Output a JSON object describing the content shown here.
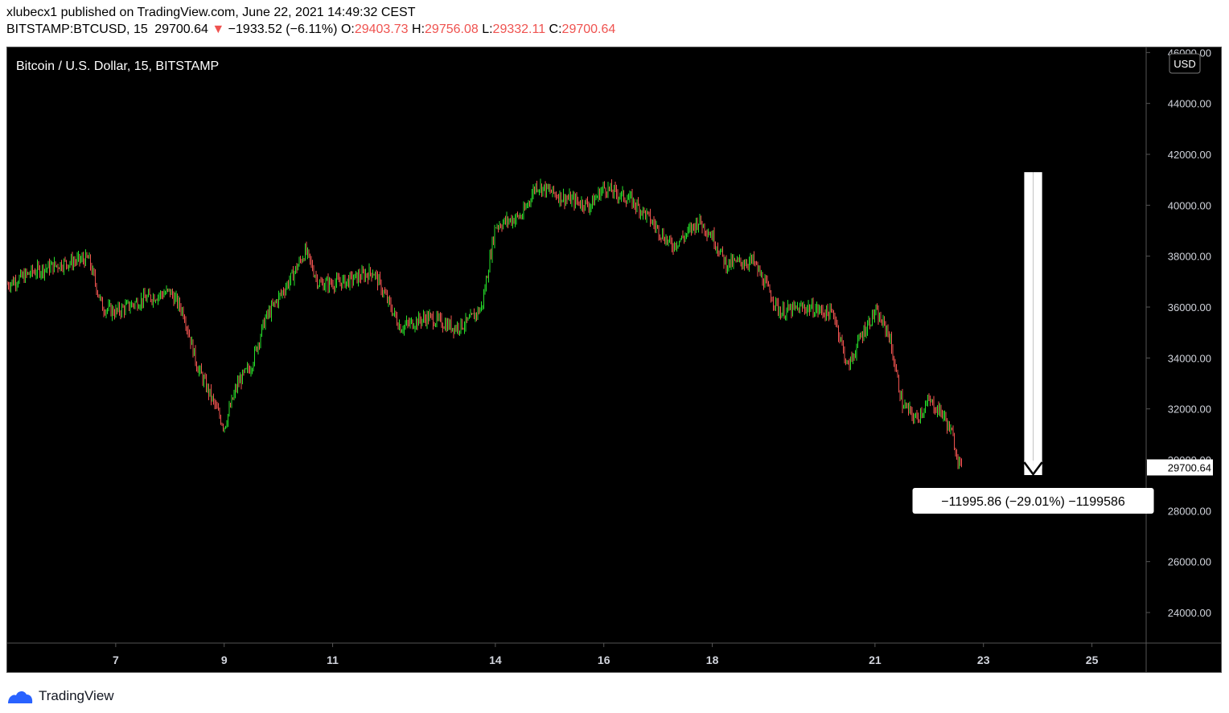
{
  "header": {
    "published_line": "xlubecx1 published on TradingView.com, June 22, 2021 14:49:32 CEST",
    "symbol_label": "BITSTAMP:BTCUSD, 15",
    "last": "29700.64",
    "arrow": "▼",
    "change": "−1933.52 (−6.11%)",
    "o_label": "O:",
    "o_value": "29403.73",
    "h_label": "H:",
    "h_value": "29756.08",
    "l_label": "L:",
    "l_value": "29332.11",
    "c_label": "C:",
    "c_value": "29700.64"
  },
  "footer": {
    "brand": "TradingView",
    "logo_icon": "tradingview-logo-icon"
  },
  "chart_data": {
    "type": "candlestick",
    "title": "Bitcoin / U.S. Dollar, 15, BITSTAMP",
    "currency": "USD",
    "x_ticks": [
      "7",
      "9",
      "11",
      "14",
      "16",
      "18",
      "21",
      "23",
      "25"
    ],
    "x_range": [
      "2021-06-05",
      "2021-06-26"
    ],
    "y_ticks": [
      "24000.00",
      "26000.00",
      "28000.00",
      "30000.00",
      "32000.00",
      "34000.00",
      "36000.00",
      "38000.00",
      "40000.00",
      "42000.00",
      "44000.00",
      "46000.00"
    ],
    "ylim": [
      22800,
      46200
    ],
    "grid": false,
    "last_price": 29700.64,
    "last_price_label": "29700.64",
    "up_color": "#26e02a",
    "down_color": "#ef5350",
    "price_path": [
      {
        "d": "2021-06-05T00:00",
        "p": 36900
      },
      {
        "d": "2021-06-05T12:00",
        "p": 37400
      },
      {
        "d": "2021-06-06T00:00",
        "p": 37700
      },
      {
        "d": "2021-06-06T12:00",
        "p": 37900
      },
      {
        "d": "2021-06-06T18:00",
        "p": 36000
      },
      {
        "d": "2021-06-07T00:00",
        "p": 35800
      },
      {
        "d": "2021-06-07T12:00",
        "p": 36300
      },
      {
        "d": "2021-06-08T00:00",
        "p": 36600
      },
      {
        "d": "2021-06-08T06:00",
        "p": 35800
      },
      {
        "d": "2021-06-08T12:00",
        "p": 33700
      },
      {
        "d": "2021-06-08T18:00",
        "p": 32500
      },
      {
        "d": "2021-06-09T00:00",
        "p": 31300
      },
      {
        "d": "2021-06-09T06:00",
        "p": 33000
      },
      {
        "d": "2021-06-09T12:00",
        "p": 33700
      },
      {
        "d": "2021-06-09T18:00",
        "p": 35500
      },
      {
        "d": "2021-06-10T06:00",
        "p": 37200
      },
      {
        "d": "2021-06-10T12:00",
        "p": 38200
      },
      {
        "d": "2021-06-10T18:00",
        "p": 36900
      },
      {
        "d": "2021-06-11T06:00",
        "p": 37000
      },
      {
        "d": "2021-06-11T18:00",
        "p": 37400
      },
      {
        "d": "2021-06-12T06:00",
        "p": 35200
      },
      {
        "d": "2021-06-12T18:00",
        "p": 35600
      },
      {
        "d": "2021-06-13T06:00",
        "p": 35200
      },
      {
        "d": "2021-06-13T12:00",
        "p": 35400
      },
      {
        "d": "2021-06-13T18:00",
        "p": 36000
      },
      {
        "d": "2021-06-14T00:00",
        "p": 39200
      },
      {
        "d": "2021-06-14T12:00",
        "p": 39600
      },
      {
        "d": "2021-06-14T18:00",
        "p": 40800
      },
      {
        "d": "2021-06-15T06:00",
        "p": 40300
      },
      {
        "d": "2021-06-15T18:00",
        "p": 40000
      },
      {
        "d": "2021-06-16T00:00",
        "p": 40700
      },
      {
        "d": "2021-06-16T12:00",
        "p": 40200
      },
      {
        "d": "2021-06-16T18:00",
        "p": 39700
      },
      {
        "d": "2021-06-17T06:00",
        "p": 38400
      },
      {
        "d": "2021-06-17T12:00",
        "p": 38800
      },
      {
        "d": "2021-06-17T18:00",
        "p": 39400
      },
      {
        "d": "2021-06-18T00:00",
        "p": 38800
      },
      {
        "d": "2021-06-18T06:00",
        "p": 37700
      },
      {
        "d": "2021-06-18T18:00",
        "p": 37800
      },
      {
        "d": "2021-06-19T06:00",
        "p": 35800
      },
      {
        "d": "2021-06-19T18:00",
        "p": 36000
      },
      {
        "d": "2021-06-20T06:00",
        "p": 35700
      },
      {
        "d": "2021-06-20T12:00",
        "p": 33600
      },
      {
        "d": "2021-06-20T18:00",
        "p": 34900
      },
      {
        "d": "2021-06-21T00:00",
        "p": 35800
      },
      {
        "d": "2021-06-21T06:00",
        "p": 35000
      },
      {
        "d": "2021-06-21T12:00",
        "p": 32200
      },
      {
        "d": "2021-06-21T18:00",
        "p": 31600
      },
      {
        "d": "2021-06-22T00:00",
        "p": 32300
      },
      {
        "d": "2021-06-22T06:00",
        "p": 31800
      },
      {
        "d": "2021-06-22T10:00",
        "p": 31000
      },
      {
        "d": "2021-06-22T14:45",
        "p": 29400
      }
    ],
    "drawing": {
      "type": "down-arrow-measure",
      "from_date": "2021-06-23T20:00",
      "to_date": "2021-06-24T00:00",
      "top_price": 41300,
      "bottom_price": 29400,
      "label": "−11995.86 (−29.01%) −1199586"
    }
  }
}
